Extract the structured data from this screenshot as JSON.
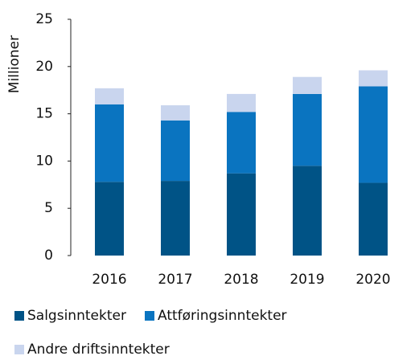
{
  "chart_data": {
    "type": "stacked_bar",
    "y_label": "Millioner",
    "categories": [
      "2016",
      "2017",
      "2018",
      "2019",
      "2020"
    ],
    "series": [
      {
        "name": "Salgsinntekter",
        "color": "#005386",
        "values": [
          7.8,
          7.9,
          8.7,
          9.5,
          7.7
        ]
      },
      {
        "name": "Attføringsinntekter",
        "color": "#0a74c0",
        "values": [
          8.2,
          6.4,
          6.5,
          7.6,
          10.2
        ]
      },
      {
        "name": "Andre driftsinntekter",
        "color": "#c9d5ee",
        "values": [
          1.7,
          1.6,
          1.9,
          1.8,
          1.7
        ]
      }
    ],
    "ylim": [
      0,
      25
    ],
    "yticks": [
      0,
      5,
      10,
      15,
      20,
      25
    ],
    "grid": false
  }
}
